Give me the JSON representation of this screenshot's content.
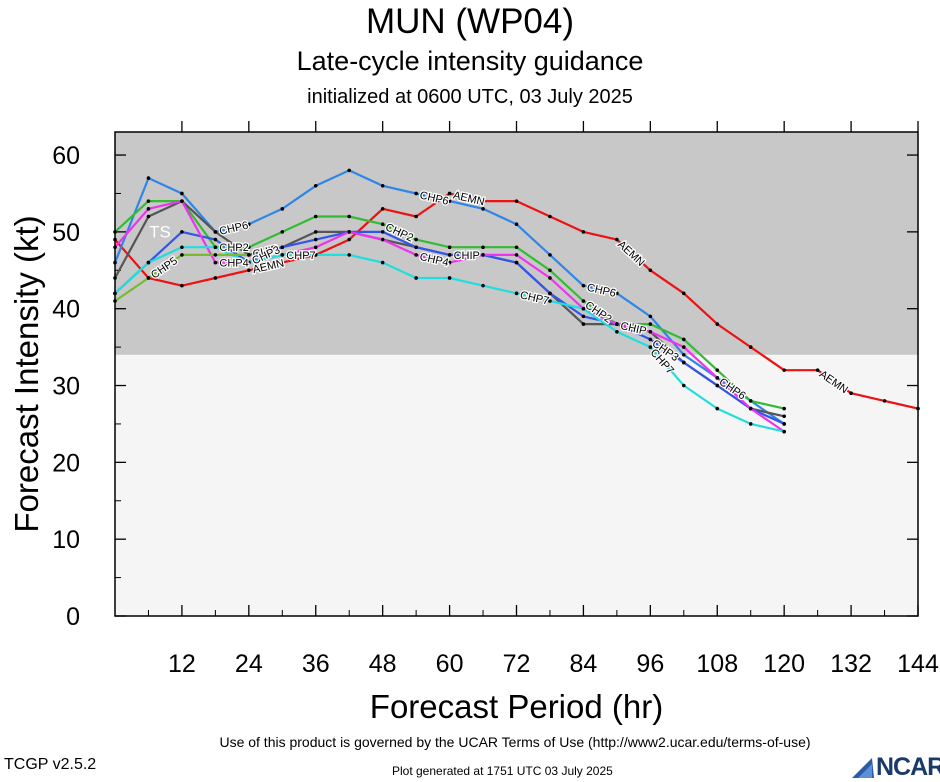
{
  "header": {
    "title": "MUN (WP04)",
    "subtitle": "Late-cycle intensity guidance",
    "init": "initialized at 0600 UTC, 03 July 2025"
  },
  "footer": {
    "terms": "Use of this product is governed by the UCAR Terms of Use (http://www2.ucar.edu/terms-of-use)",
    "version": "TCGP v2.5.2",
    "generated": "Plot generated at 1751 UTC   03 July 2025",
    "logo": "NCAR"
  },
  "chart_data": {
    "type": "line",
    "xlabel": "Forecast Period (hr)",
    "ylabel": "Forecast Intensity (kt)",
    "xlim": [
      0,
      144
    ],
    "ylim": [
      0,
      63
    ],
    "xticks": [
      12,
      24,
      36,
      48,
      60,
      72,
      84,
      96,
      108,
      120,
      132,
      144
    ],
    "yticks": [
      0,
      10,
      20,
      30,
      40,
      50,
      60
    ],
    "shaded_band": {
      "from": 34,
      "to": 63,
      "color": "#c8c8c8",
      "label": "TS"
    },
    "below_band_color": "#f5f5f5",
    "series": [
      {
        "name": "AEMN",
        "color": "#ee1111",
        "label_x": [
          24,
          60,
          90,
          126
        ],
        "x": [
          0,
          6,
          12,
          18,
          24,
          30,
          36,
          42,
          48,
          54,
          60,
          66,
          72,
          78,
          84,
          90,
          96,
          102,
          108,
          114,
          120,
          126,
          132,
          138,
          144
        ],
        "y": [
          49,
          44,
          43,
          44,
          45,
          46,
          47,
          49,
          53,
          52,
          55,
          54,
          54,
          52,
          50,
          49,
          45,
          42,
          38,
          35,
          32,
          32,
          29,
          28,
          27
        ]
      },
      {
        "name": "CHP6",
        "color": "#2f86e8",
        "label_x": [
          18,
          54,
          84,
          108
        ],
        "x": [
          0,
          6,
          12,
          18,
          24,
          30,
          36,
          42,
          48,
          54,
          60,
          66,
          72,
          78,
          84,
          90,
          96,
          102,
          108,
          114,
          120
        ],
        "y": [
          46,
          57,
          55,
          50,
          51,
          53,
          56,
          58,
          56,
          55,
          54,
          53,
          51,
          47,
          43,
          42,
          39,
          34,
          31,
          28,
          25
        ]
      },
      {
        "name": "CHP2",
        "color": "#33bb33",
        "label_x": [
          18,
          48,
          84
        ],
        "x": [
          0,
          6,
          12,
          18,
          24,
          30,
          36,
          42,
          48,
          54,
          60,
          66,
          72,
          78,
          84,
          90,
          96,
          102,
          108,
          114,
          120
        ],
        "y": [
          50,
          54,
          54,
          48,
          48,
          50,
          52,
          52,
          51,
          49,
          48,
          48,
          48,
          45,
          41,
          38,
          38,
          36,
          32,
          28,
          27
        ]
      },
      {
        "name": "CHIP",
        "color": "#555555",
        "label_x": [
          24,
          60,
          90
        ],
        "x": [
          0,
          6,
          12,
          18,
          24,
          30,
          36,
          42,
          48,
          54,
          60,
          66,
          72,
          78,
          84,
          90,
          96,
          102,
          108,
          114,
          120
        ],
        "y": [
          44,
          52,
          54,
          50,
          47,
          48,
          50,
          50,
          49,
          48,
          47,
          47,
          46,
          42,
          38,
          38,
          37,
          33,
          30,
          27,
          26
        ]
      },
      {
        "name": "CHP3",
        "color": "#3355ee",
        "label_x": [
          24,
          96
        ],
        "x": [
          0,
          6,
          12,
          18,
          24,
          30,
          36,
          42,
          48,
          54,
          60,
          66,
          72,
          78,
          84,
          90,
          96,
          102,
          108,
          114,
          120
        ],
        "y": [
          42,
          46,
          50,
          49,
          46,
          48,
          49,
          50,
          50,
          48,
          47,
          47,
          46,
          42,
          39,
          38,
          36,
          33,
          30,
          27,
          25
        ]
      },
      {
        "name": "CHP4",
        "color": "#ee33ee",
        "label_x": [
          18,
          54
        ],
        "x": [
          0,
          6,
          12,
          18,
          24,
          30,
          36,
          42,
          48,
          54,
          60,
          66,
          72,
          78,
          84,
          90,
          96,
          102,
          108,
          114,
          120
        ],
        "y": [
          48,
          53,
          54,
          46,
          46,
          47,
          48,
          50,
          49,
          47,
          46,
          47,
          47,
          44,
          40,
          38,
          37,
          35,
          31,
          27,
          24
        ]
      },
      {
        "name": "CHP7",
        "color": "#22dddd",
        "label_x": [
          30,
          72,
          96
        ],
        "x": [
          0,
          6,
          12,
          18,
          24,
          30,
          36,
          42,
          48,
          54,
          60,
          66,
          72,
          78,
          84,
          90,
          96,
          102,
          108,
          114,
          120
        ],
        "y": [
          42,
          46,
          48,
          48,
          46,
          47,
          47,
          47,
          46,
          44,
          44,
          43,
          42,
          41,
          40,
          37,
          35,
          30,
          27,
          25,
          24
        ]
      },
      {
        "name": "CHP5",
        "color": "#77bb33",
        "label_x": [
          6
        ],
        "x": [
          0,
          6,
          12,
          18,
          24
        ],
        "y": [
          41,
          44,
          47,
          47,
          47
        ]
      }
    ]
  }
}
